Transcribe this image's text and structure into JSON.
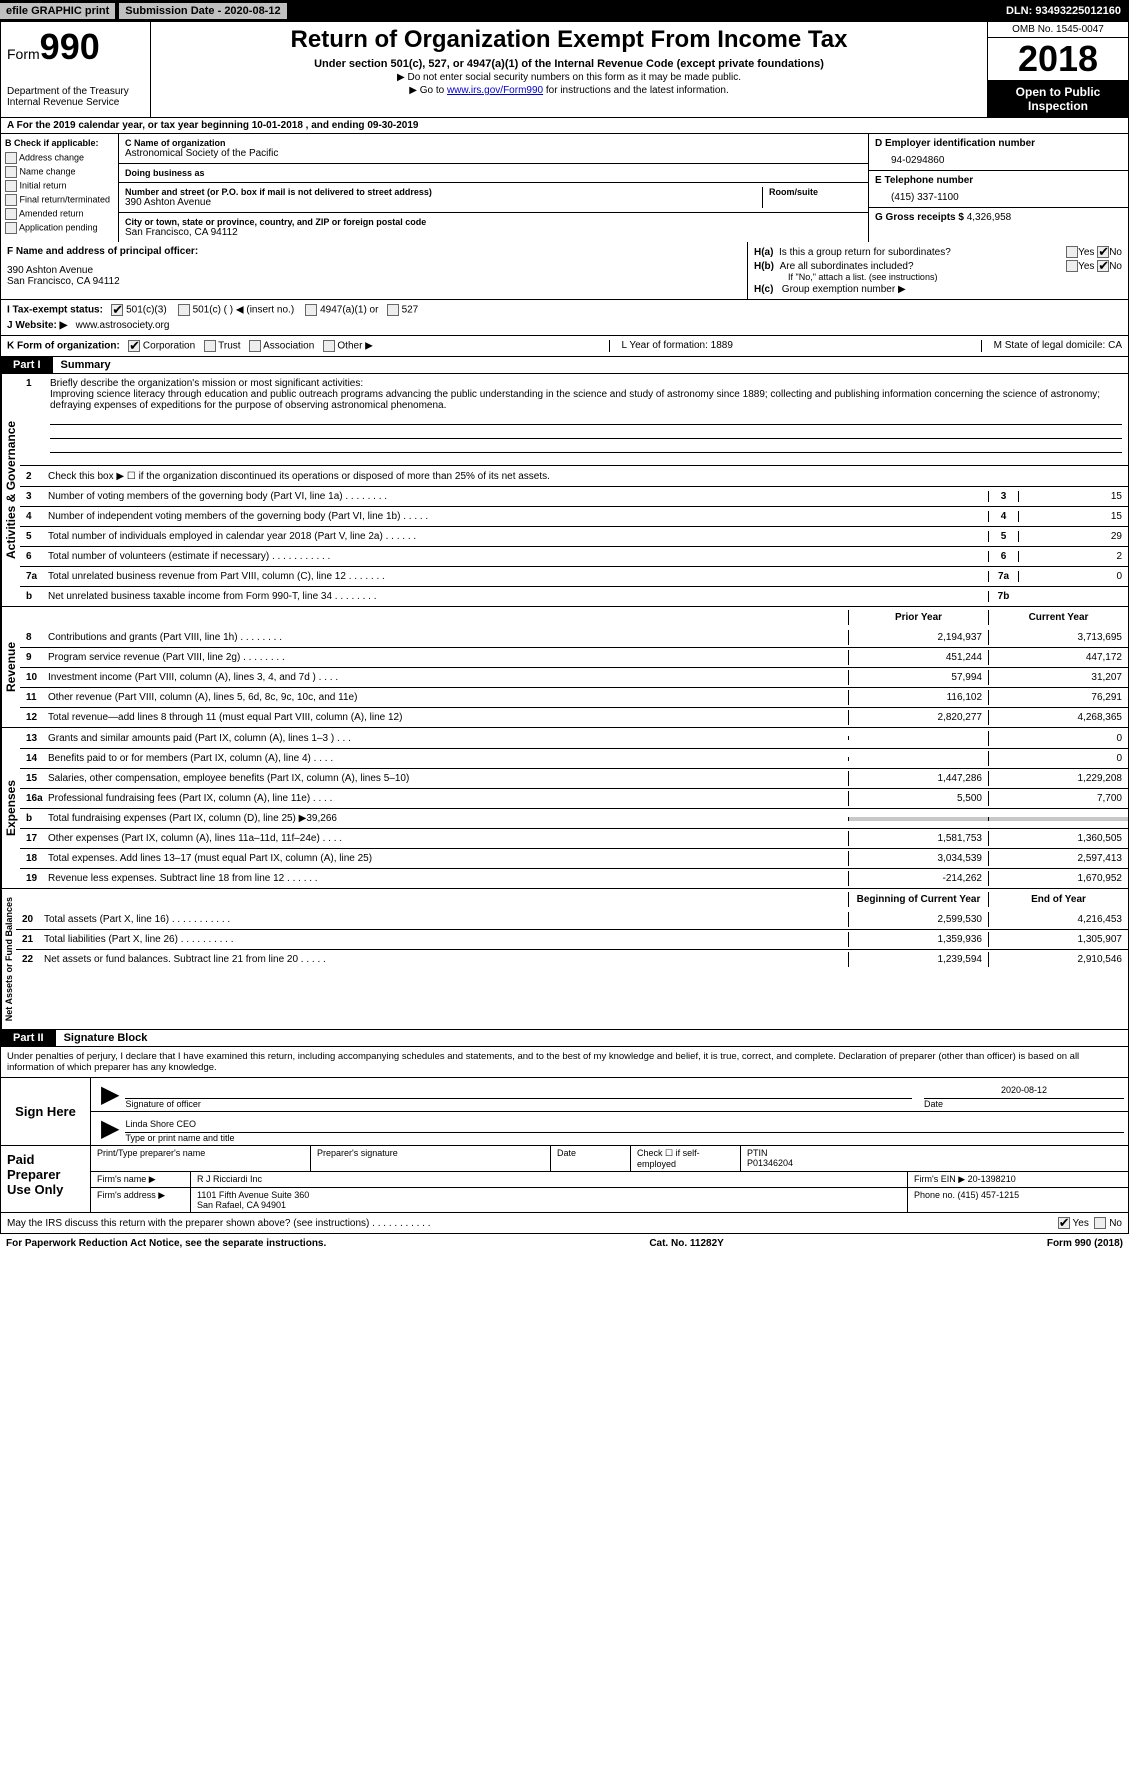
{
  "topbar": {
    "efile": "efile GRAPHIC print",
    "submission_label": "Submission Date - 2020-08-12",
    "dln": "DLN: 93493225012160"
  },
  "header": {
    "form_prefix": "Form",
    "form_number": "990",
    "dept1": "Department of the Treasury",
    "dept2": "Internal Revenue Service",
    "title": "Return of Organization Exempt From Income Tax",
    "sub1": "Under section 501(c), 527, or 4947(a)(1) of the Internal Revenue Code (except private foundations)",
    "sub2": "▶ Do not enter social security numbers on this form as it may be made public.",
    "sub3_pre": "▶ Go to ",
    "sub3_link": "www.irs.gov/Form990",
    "sub3_post": " for instructions and the latest information.",
    "omb": "OMB No. 1545-0047",
    "year": "2018",
    "open1": "Open to Public",
    "open2": "Inspection"
  },
  "rowA": "A  For the 2019 calendar year, or tax year beginning 10-01-2018      , and ending 09-30-2019",
  "colB": {
    "title": "B Check if applicable:",
    "items": [
      "Address change",
      "Name change",
      "Initial return",
      "Final return/terminated",
      "Amended return",
      "Application pending"
    ]
  },
  "colC": {
    "name_label": "C Name of organization",
    "name": "Astronomical Society of the Pacific",
    "dba_label": "Doing business as",
    "dba": "",
    "street_label": "Number and street (or P.O. box if mail is not delivered to street address)",
    "street": "390 Ashton Avenue",
    "room_label": "Room/suite",
    "city_label": "City or town, state or province, country, and ZIP or foreign postal code",
    "city": "San Francisco, CA  94112"
  },
  "colD": {
    "ein_label": "D Employer identification number",
    "ein": "94-0294860",
    "tel_label": "E Telephone number",
    "tel": "(415) 337-1100",
    "gross_label": "G Gross receipts $",
    "gross": "4,326,958"
  },
  "rowF": {
    "label": "F  Name and address of principal officer:",
    "line1": "390 Ashton Avenue",
    "line2": "San Francisco, CA  94112"
  },
  "rowH": {
    "ha_label": "H(a)",
    "ha_q": "Is this a group return for subordinates?",
    "hb_label": "H(b)",
    "hb_q": "Are all subordinates included?",
    "hb_note": "If \"No,\" attach a list. (see instructions)",
    "hc_label": "H(c)",
    "hc_q": "Group exemption number ▶",
    "yes": "Yes",
    "no": "No"
  },
  "rowI": {
    "label": "I  Tax-exempt status:",
    "opts": [
      "501(c)(3)",
      "501(c) (  ) ◀ (insert no.)",
      "4947(a)(1) or",
      "527"
    ]
  },
  "rowJ": {
    "label": "J  Website: ▶",
    "val": "www.astrosociety.org"
  },
  "rowK": {
    "label": "K Form of organization:",
    "opts": [
      "Corporation",
      "Trust",
      "Association",
      "Other ▶"
    ],
    "L": "L Year of formation: 1889",
    "M": "M State of legal domicile: CA"
  },
  "part1": {
    "label": "Part I",
    "title": "Summary"
  },
  "vlabels": {
    "ag": "Activities & Governance",
    "rev": "Revenue",
    "exp": "Expenses",
    "na": "Net Assets or Fund Balances"
  },
  "mission": {
    "num": "1",
    "lead": "Briefly describe the organization's mission or most significant activities:",
    "text": "Improving science literacy through education and public outreach programs advancing the public understanding in the science and study of astronomy since 1889; collecting and publishing information concerning the science of astronomy; defraying expenses of expeditions for the purpose of observing astronomical phenomena."
  },
  "lines_ag": [
    {
      "n": "2",
      "d": "Check this box ▶ ☐  if the organization discontinued its operations or disposed of more than 25% of its net assets."
    },
    {
      "n": "3",
      "d": "Number of voting members of the governing body (Part VI, line 1a)   .    .    .    .    .    .    .    .",
      "box": "3",
      "v": "15"
    },
    {
      "n": "4",
      "d": "Number of independent voting members of the governing body (Part VI, line 1b)   .    .    .    .    .",
      "box": "4",
      "v": "15"
    },
    {
      "n": "5",
      "d": "Total number of individuals employed in calendar year 2018 (Part V, line 2a)   .    .    .    .    .    .",
      "box": "5",
      "v": "29"
    },
    {
      "n": "6",
      "d": "Total number of volunteers (estimate if necessary)   .    .    .    .    .    .    .    .    .    .    .",
      "box": "6",
      "v": "2"
    },
    {
      "n": "7a",
      "d": "Total unrelated business revenue from Part VIII, column (C), line 12   .    .    .    .    .    .    .",
      "box": "7a",
      "v": "0"
    },
    {
      "n": "b",
      "d": "Net unrelated business taxable income from Form 990-T, line 34   .    .    .    .    .    .    .    .",
      "box": "7b",
      "v": ""
    }
  ],
  "year_hdr": {
    "prior": "Prior Year",
    "current": "Current Year"
  },
  "lines_rev": [
    {
      "n": "8",
      "d": "Contributions and grants (Part VIII, line 1h)   .    .    .    .    .    .    .    .",
      "p": "2,194,937",
      "c": "3,713,695"
    },
    {
      "n": "9",
      "d": "Program service revenue (Part VIII, line 2g)   .    .    .    .    .    .    .    .",
      "p": "451,244",
      "c": "447,172"
    },
    {
      "n": "10",
      "d": "Investment income (Part VIII, column (A), lines 3, 4, and 7d )   .    .    .    .",
      "p": "57,994",
      "c": "31,207"
    },
    {
      "n": "11",
      "d": "Other revenue (Part VIII, column (A), lines 5, 6d, 8c, 9c, 10c, and 11e)",
      "p": "116,102",
      "c": "76,291"
    },
    {
      "n": "12",
      "d": "Total revenue—add lines 8 through 11 (must equal Part VIII, column (A), line 12)",
      "p": "2,820,277",
      "c": "4,268,365"
    }
  ],
  "lines_exp": [
    {
      "n": "13",
      "d": "Grants and similar amounts paid (Part IX, column (A), lines 1–3 )   .    .    .",
      "p": "",
      "c": "0"
    },
    {
      "n": "14",
      "d": "Benefits paid to or for members (Part IX, column (A), line 4)   .    .    .    .",
      "p": "",
      "c": "0"
    },
    {
      "n": "15",
      "d": "Salaries, other compensation, employee benefits (Part IX, column (A), lines 5–10)",
      "p": "1,447,286",
      "c": "1,229,208"
    },
    {
      "n": "16a",
      "d": "Professional fundraising fees (Part IX, column (A), line 11e)   .    .    .    .",
      "p": "5,500",
      "c": "7,700"
    },
    {
      "n": "b",
      "d": "Total fundraising expenses (Part IX, column (D), line 25) ▶39,266",
      "p": "",
      "c": "",
      "shaded": true
    },
    {
      "n": "17",
      "d": "Other expenses (Part IX, column (A), lines 11a–11d, 11f–24e)   .    .    .    .",
      "p": "1,581,753",
      "c": "1,360,505"
    },
    {
      "n": "18",
      "d": "Total expenses. Add lines 13–17 (must equal Part IX, column (A), line 25)",
      "p": "3,034,539",
      "c": "2,597,413"
    },
    {
      "n": "19",
      "d": "Revenue less expenses. Subtract line 18 from line 12   .    .    .    .    .    .",
      "p": "-214,262",
      "c": "1,670,952"
    }
  ],
  "na_hdr": {
    "prior": "Beginning of Current Year",
    "current": "End of Year"
  },
  "lines_na": [
    {
      "n": "20",
      "d": "Total assets (Part X, line 16)   .    .    .    .    .    .    .    .    .    .    .",
      "p": "2,599,530",
      "c": "4,216,453"
    },
    {
      "n": "21",
      "d": "Total liabilities (Part X, line 26)   .    .    .    .    .    .    .    .    .    .",
      "p": "1,359,936",
      "c": "1,305,907"
    },
    {
      "n": "22",
      "d": "Net assets or fund balances. Subtract line 21 from line 20   .    .    .    .    .",
      "p": "1,239,594",
      "c": "2,910,546"
    }
  ],
  "part2": {
    "label": "Part II",
    "title": "Signature Block"
  },
  "sig_intro": "Under penalties of perjury, I declare that I have examined this return, including accompanying schedules and statements, and to the best of my knowledge and belief, it is true, correct, and complete. Declaration of preparer (other than officer) is based on all information of which preparer has any knowledge.",
  "sign": {
    "here": "Sign Here",
    "sig_label": "Signature of officer",
    "date_label": "Date",
    "date": "2020-08-12",
    "name": "Linda Shore CEO",
    "name_label": "Type or print name and title"
  },
  "prep": {
    "title": "Paid Preparer Use Only",
    "r1": {
      "a": "Print/Type preparer's name",
      "b": "Preparer's signature",
      "c": "Date",
      "d": "Check ☐ if self-employed",
      "e": "PTIN",
      "ptin": "P01346204"
    },
    "r2": {
      "a": "Firm's name    ▶",
      "b": "R J Ricciardi Inc",
      "c": "Firm's EIN ▶",
      "d": "20-1398210"
    },
    "r3": {
      "a": "Firm's address ▶",
      "b": "1101 Fifth Avenue Suite 360",
      "c": "Phone no. (415) 457-1215"
    },
    "r3b": "San Rafael, CA 94901"
  },
  "footer": {
    "q": "May the IRS discuss this return with the preparer shown above? (see instructions)   .    .    .    .    .    .    .    .    .    .    .",
    "yes": "Yes",
    "no": "No",
    "pra": "For Paperwork Reduction Act Notice, see the separate instructions.",
    "cat": "Cat. No. 11282Y",
    "form": "Form 990 (2018)"
  },
  "colors": {
    "black": "#000000",
    "white": "#ffffff",
    "grey": "#c0c0c0",
    "link": "#0000cc",
    "shade": "#c8c8c8"
  }
}
